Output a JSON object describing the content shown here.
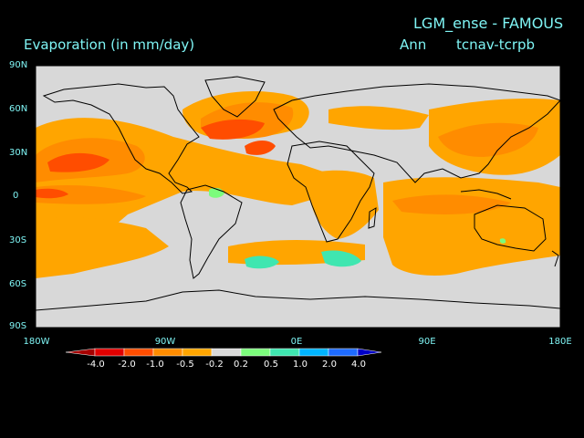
{
  "header": {
    "model_title": "LGM_ense - FAMOUS",
    "variable_title": "Evaporation (in mm/day)",
    "season": "Ann",
    "difference": "tcnav-tcrpb"
  },
  "axes": {
    "lat_labels": [
      "90N",
      "60N",
      "30N",
      "0",
      "30S",
      "60S",
      "90S"
    ],
    "lon_labels": [
      "180W",
      "90W",
      "0E",
      "90E",
      "180E"
    ]
  },
  "colorbar": {
    "labels": [
      "-4.0",
      "-2.0",
      "-1.0",
      "-0.5",
      "-0.2",
      "0.2",
      "0.5",
      "1.0",
      "2.0",
      "4.0"
    ],
    "colors": [
      "#a50000",
      "#e00000",
      "#ff4d00",
      "#ff8c00",
      "#ffa500",
      "#d8d8d8",
      "#7cfc7c",
      "#3fe6b0",
      "#00b4ff",
      "#1e6bff",
      "#0000c8"
    ]
  },
  "map": {
    "background_color": "#d8d8d8",
    "coast_color": "#000000"
  }
}
